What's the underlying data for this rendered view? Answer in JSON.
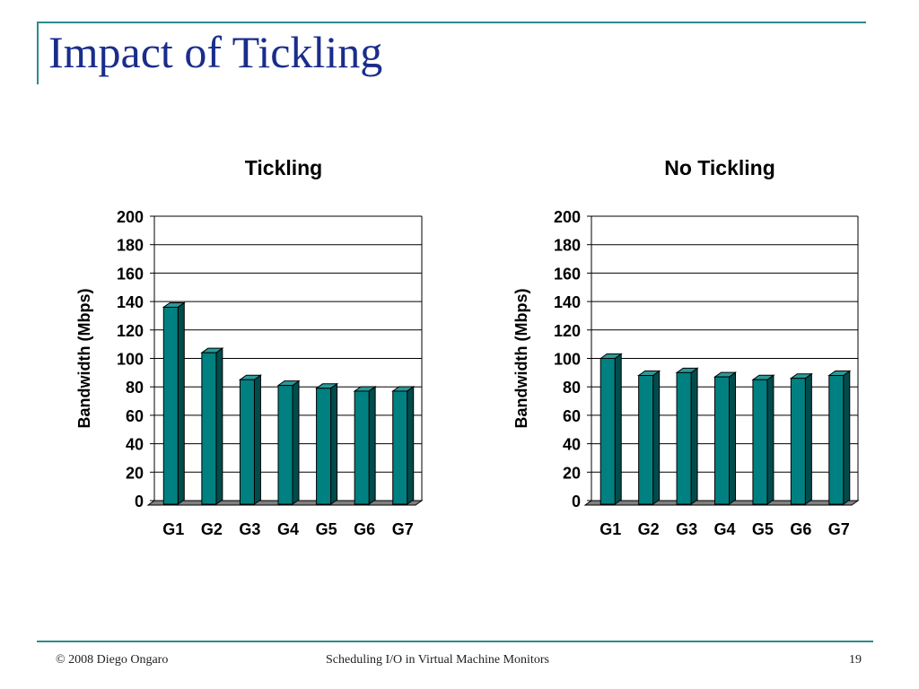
{
  "slide": {
    "title": "Impact of Tickling"
  },
  "footer": {
    "copyright": "© 2008 Diego Ongaro",
    "center": "Scheduling I/O in Virtual Machine Monitors",
    "page": "19"
  },
  "colors": {
    "bar_front": "#008080",
    "bar_side": "#004c4c",
    "bar_top": "#2a9a9a",
    "accent_line": "#2e8b8b",
    "title_text": "#1a2d8c"
  },
  "chart_data": [
    {
      "type": "bar",
      "title": "Tickling",
      "ylabel": "Bandwidth (Mbps)",
      "xlabel": "",
      "categories": [
        "G1",
        "G2",
        "G3",
        "G4",
        "G5",
        "G6",
        "G7"
      ],
      "values": [
        136,
        104,
        85,
        81,
        79,
        77,
        77
      ],
      "ylim": [
        0,
        200
      ],
      "yticks": [
        "0",
        "20",
        "40",
        "60",
        "80",
        "100",
        "120",
        "140",
        "160",
        "180",
        "200"
      ],
      "grid": true,
      "legend": "none",
      "style": "3d-column"
    },
    {
      "type": "bar",
      "title": "No Tickling",
      "ylabel": "Bandwidth (Mbps)",
      "xlabel": "",
      "categories": [
        "G1",
        "G2",
        "G3",
        "G4",
        "G5",
        "G6",
        "G7"
      ],
      "values": [
        100,
        88,
        90,
        87,
        85,
        86,
        88
      ],
      "ylim": [
        0,
        200
      ],
      "yticks": [
        "0",
        "20",
        "40",
        "60",
        "80",
        "100",
        "120",
        "140",
        "160",
        "180",
        "200"
      ],
      "grid": true,
      "legend": "none",
      "style": "3d-column"
    }
  ]
}
